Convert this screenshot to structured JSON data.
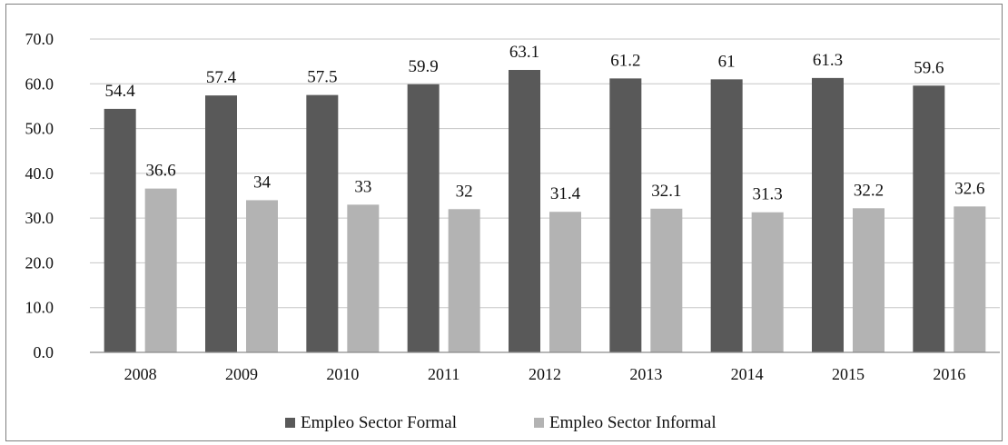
{
  "chart_data": {
    "type": "bar",
    "categories": [
      "2008",
      "2009",
      "2010",
      "2011",
      "2012",
      "2013",
      "2014",
      "2015",
      "2016"
    ],
    "series": [
      {
        "name": "Empleo Sector Formal",
        "values": [
          54.4,
          57.4,
          57.5,
          59.9,
          63.1,
          61.2,
          61,
          61.3,
          59.6
        ],
        "labels": [
          "54.4",
          "57.4",
          "57.5",
          "59.9",
          "63.1",
          "61.2",
          "61",
          "61.3",
          "59.6"
        ],
        "color": "#595959"
      },
      {
        "name": "Empleo Sector Informal",
        "values": [
          36.6,
          34,
          33,
          32,
          31.4,
          32.1,
          31.3,
          32.2,
          32.6
        ],
        "labels": [
          "36.6",
          "34",
          "33",
          "32",
          "31.4",
          "32.1",
          "31.3",
          "32.2",
          "32.6"
        ],
        "color": "#b3b3b3"
      }
    ],
    "ylim": [
      0,
      70
    ],
    "yticks": [
      "0.0",
      "10.0",
      "20.0",
      "30.0",
      "40.0",
      "50.0",
      "60.0",
      "70.0"
    ],
    "grid": true,
    "legend_position": "bottom",
    "title": "",
    "xlabel": "",
    "ylabel": ""
  }
}
